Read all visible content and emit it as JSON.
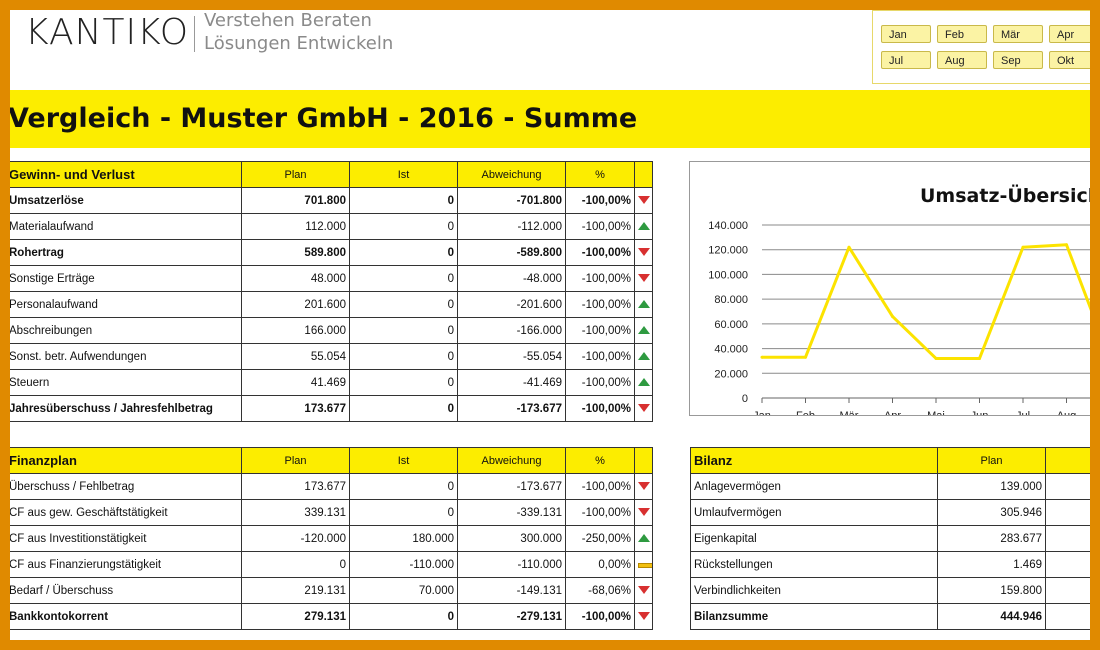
{
  "header": {
    "logo": "KANTIKO",
    "tagline_line1": "Verstehen Beraten",
    "tagline_line2": "Lösungen Entwickeln"
  },
  "months": [
    "Jan",
    "Feb",
    "Mär",
    "Apr",
    "Jul",
    "Aug",
    "Sep",
    "Okt"
  ],
  "title": "Vergleich - Muster GmbH - 2016 - Summe",
  "guv": {
    "headers": [
      "Gewinn- und Verlust",
      "Plan",
      "Ist",
      "Abweichung",
      "%"
    ],
    "rows": [
      {
        "label": "Umsatzerlöse",
        "plan": "701.800",
        "ist": "0",
        "abw": "-701.800",
        "pct": "-100,00%",
        "ind": "down",
        "bold": true
      },
      {
        "label": "Materialaufwand",
        "plan": "112.000",
        "ist": "0",
        "abw": "-112.000",
        "pct": "-100,00%",
        "ind": "up",
        "bold": false
      },
      {
        "label": "Rohertrag",
        "plan": "589.800",
        "ist": "0",
        "abw": "-589.800",
        "pct": "-100,00%",
        "ind": "down",
        "bold": true
      },
      {
        "label": "Sonstige Erträge",
        "plan": "48.000",
        "ist": "0",
        "abw": "-48.000",
        "pct": "-100,00%",
        "ind": "down",
        "bold": false
      },
      {
        "label": "Personalaufwand",
        "plan": "201.600",
        "ist": "0",
        "abw": "-201.600",
        "pct": "-100,00%",
        "ind": "up",
        "bold": false
      },
      {
        "label": "Abschreibungen",
        "plan": "166.000",
        "ist": "0",
        "abw": "-166.000",
        "pct": "-100,00%",
        "ind": "up",
        "bold": false
      },
      {
        "label": "Sonst. betr. Aufwendungen",
        "plan": "55.054",
        "ist": "0",
        "abw": "-55.054",
        "pct": "-100,00%",
        "ind": "up",
        "bold": false
      },
      {
        "label": "Steuern",
        "plan": "41.469",
        "ist": "0",
        "abw": "-41.469",
        "pct": "-100,00%",
        "ind": "up",
        "bold": false
      },
      {
        "label": "Jahresüberschuss / Jahresfehlbetrag",
        "plan": "173.677",
        "ist": "0",
        "abw": "-173.677",
        "pct": "-100,00%",
        "ind": "down",
        "bold": true
      }
    ]
  },
  "finanz": {
    "headers": [
      "Finanzplan",
      "Plan",
      "Ist",
      "Abweichung",
      "%"
    ],
    "rows": [
      {
        "label": "Überschuss / Fehlbetrag",
        "plan": "173.677",
        "ist": "0",
        "abw": "-173.677",
        "pct": "-100,00%",
        "ind": "down",
        "bold": false
      },
      {
        "label": "CF aus gew. Geschäftstätigkeit",
        "plan": "339.131",
        "ist": "0",
        "abw": "-339.131",
        "pct": "-100,00%",
        "ind": "down",
        "bold": false
      },
      {
        "label": "CF aus Investitionstätigkeit",
        "plan": "-120.000",
        "ist": "180.000",
        "abw": "300.000",
        "pct": "-250,00%",
        "ind": "up",
        "bold": false
      },
      {
        "label": "CF aus Finanzierungstätigkeit",
        "plan": "0",
        "ist": "-110.000",
        "abw": "-110.000",
        "pct": "0,00%",
        "ind": "flat",
        "bold": false
      },
      {
        "label": "Bedarf / Überschuss",
        "plan": "219.131",
        "ist": "70.000",
        "abw": "-149.131",
        "pct": "-68,06%",
        "ind": "down",
        "bold": false
      },
      {
        "label": "Bankkontokorrent",
        "plan": "279.131",
        "ist": "0",
        "abw": "-279.131",
        "pct": "-100,00%",
        "ind": "down",
        "bold": true
      }
    ]
  },
  "bilanz": {
    "headers": [
      "Bilanz",
      "Plan"
    ],
    "rows": [
      {
        "label": "Anlagevermögen",
        "plan": "139.000",
        "bold": false
      },
      {
        "label": "Umlaufvermögen",
        "plan": "305.946",
        "bold": false
      },
      {
        "label": "Eigenkapital",
        "plan": "283.677",
        "bold": false
      },
      {
        "label": "Rückstellungen",
        "plan": "1.469",
        "bold": false
      },
      {
        "label": "Verbindlichkeiten",
        "plan": "159.800",
        "bold": false
      },
      {
        "label": "Bilanzsumme",
        "plan": "444.946",
        "bold": true
      }
    ]
  },
  "colors": {
    "line": "#fce300",
    "band": "#fced00",
    "down": "#d83030",
    "up": "#2e9a40"
  },
  "chart_data": {
    "type": "line",
    "title": "Umsatz-Übersich",
    "categories": [
      "Jan",
      "Feb",
      "Mär",
      "Apr",
      "Mai",
      "Jun",
      "Jul",
      "Aug"
    ],
    "values": [
      33000,
      33000,
      122000,
      66000,
      32000,
      32000,
      122000,
      124000
    ],
    "yticks": [
      "0",
      "20.000",
      "40.000",
      "60.000",
      "80.000",
      "100.000",
      "120.000",
      "140.000"
    ],
    "ylim": [
      0,
      140000
    ],
    "grid": true
  }
}
